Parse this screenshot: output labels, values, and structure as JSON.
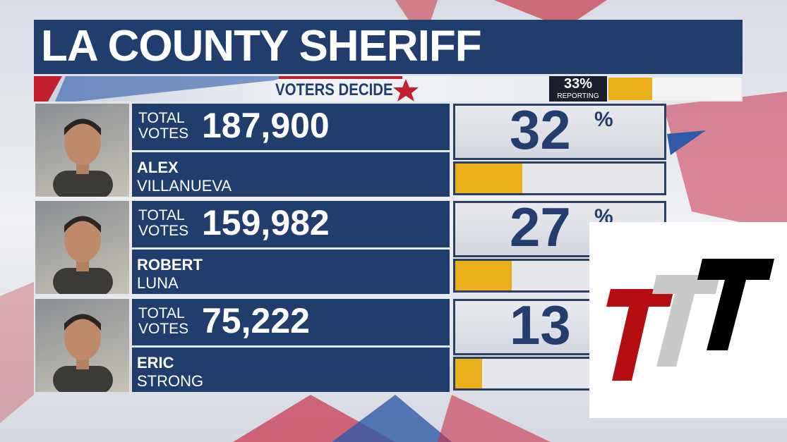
{
  "title": "LA COUNTY SHERIFF",
  "brand": "VOTERS DECIDE",
  "reporting": {
    "percent": 33,
    "label": "REPORTING"
  },
  "percent_sign": "%",
  "votes_label": [
    "TOTAL",
    "VOTES"
  ],
  "candidates": [
    {
      "first": "ALEX",
      "last": "VILLANUEVA",
      "votes": "187,900",
      "percent": 32
    },
    {
      "first": "ROBERT",
      "last": "LUNA",
      "votes": "159,982",
      "percent": 27
    },
    {
      "first": "ERIC",
      "last": "STRONG",
      "votes": "75,222",
      "percent": 13
    }
  ]
}
